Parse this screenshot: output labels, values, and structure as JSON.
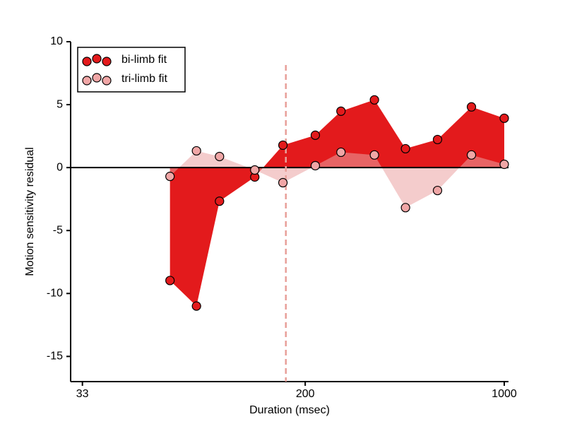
{
  "chart_data": {
    "type": "area-scatter",
    "x_label": "Duration (msec)",
    "y_label": "Motion sensitivity residual",
    "x_log": true,
    "x": [
      67,
      83,
      100,
      133,
      167,
      217,
      267,
      350,
      450,
      583,
      767,
      1000
    ],
    "series": [
      {
        "name": "bi-limb fit",
        "color": "#e31a1c",
        "fill": "#e31a1c",
        "fill_opacity": 1,
        "values": [
          -8.97,
          -11.0,
          -2.67,
          -0.75,
          1.78,
          2.57,
          4.48,
          5.38,
          1.5,
          2.23,
          4.82,
          3.92
        ]
      },
      {
        "name": "tri-limb fit",
        "color": "#f0a6a6",
        "fill": "#eba3a3",
        "fill_opacity": 0.55,
        "values": [
          -0.7,
          1.33,
          0.88,
          -0.19,
          -1.2,
          0.15,
          1.22,
          1.0,
          -3.18,
          -1.82,
          1.0,
          0.26
        ]
      }
    ],
    "xlim": [
      30,
      1035
    ],
    "ylim": [
      -17,
      10
    ],
    "xticks": [
      33,
      200,
      1000
    ],
    "yticks": [
      10,
      5,
      0,
      -5,
      -10,
      -15
    ],
    "hline": 0,
    "vline": 171,
    "vline_color": "#e8a09a",
    "legend": "upper left"
  }
}
